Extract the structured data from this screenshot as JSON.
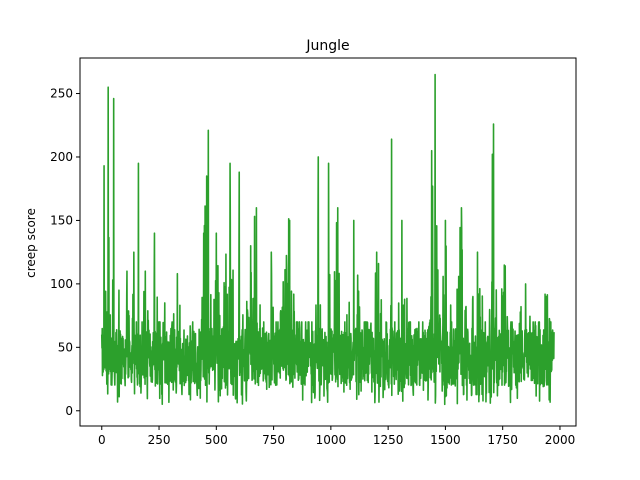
{
  "chart_data": {
    "type": "line",
    "title": "Jungle",
    "xlabel": "",
    "ylabel": "creep score",
    "xlim": [
      -95,
      2070
    ],
    "ylim": [
      -12,
      278
    ],
    "xticks": [
      0,
      250,
      500,
      750,
      1000,
      1250,
      1500,
      1750,
      2000
    ],
    "yticks": [
      0,
      50,
      100,
      150,
      200,
      250
    ],
    "grid": false,
    "legend": "none",
    "series_color": "#2ca02c",
    "n_points": 1975,
    "anchors": [
      [
        0,
        60
      ],
      [
        10,
        193
      ],
      [
        20,
        55
      ],
      [
        28,
        255
      ],
      [
        36,
        70
      ],
      [
        45,
        30
      ],
      [
        52,
        246
      ],
      [
        60,
        50
      ],
      [
        75,
        95
      ],
      [
        90,
        40
      ],
      [
        110,
        110
      ],
      [
        125,
        35
      ],
      [
        140,
        125
      ],
      [
        155,
        30
      ],
      [
        160,
        195
      ],
      [
        175,
        45
      ],
      [
        190,
        110
      ],
      [
        210,
        35
      ],
      [
        230,
        140
      ],
      [
        250,
        40
      ],
      [
        275,
        85
      ],
      [
        300,
        30
      ],
      [
        330,
        108
      ],
      [
        360,
        20
      ],
      [
        400,
        45
      ],
      [
        430,
        10
      ],
      [
        445,
        140
      ],
      [
        458,
        185
      ],
      [
        465,
        221
      ],
      [
        480,
        50
      ],
      [
        500,
        140
      ],
      [
        520,
        40
      ],
      [
        560,
        195
      ],
      [
        580,
        50
      ],
      [
        600,
        188
      ],
      [
        620,
        35
      ],
      [
        650,
        130
      ],
      [
        675,
        160
      ],
      [
        700,
        35
      ],
      [
        740,
        125
      ],
      [
        760,
        25
      ],
      [
        820,
        150
      ],
      [
        860,
        25
      ],
      [
        900,
        40
      ],
      [
        930,
        10
      ],
      [
        945,
        200
      ],
      [
        960,
        45
      ],
      [
        990,
        195
      ],
      [
        1000,
        60
      ],
      [
        1030,
        160
      ],
      [
        1060,
        40
      ],
      [
        1100,
        150
      ],
      [
        1140,
        25
      ],
      [
        1200,
        125
      ],
      [
        1240,
        30
      ],
      [
        1265,
        214
      ],
      [
        1280,
        40
      ],
      [
        1310,
        150
      ],
      [
        1350,
        20
      ],
      [
        1400,
        50
      ],
      [
        1425,
        20
      ],
      [
        1440,
        205
      ],
      [
        1455,
        265
      ],
      [
        1470,
        60
      ],
      [
        1500,
        150
      ],
      [
        1530,
        50
      ],
      [
        1570,
        160
      ],
      [
        1600,
        35
      ],
      [
        1640,
        125
      ],
      [
        1680,
        40
      ],
      [
        1710,
        226
      ],
      [
        1725,
        50
      ],
      [
        1760,
        110
      ],
      [
        1800,
        30
      ],
      [
        1850,
        100
      ],
      [
        1900,
        25
      ],
      [
        1940,
        90
      ],
      [
        1975,
        30
      ]
    ]
  }
}
